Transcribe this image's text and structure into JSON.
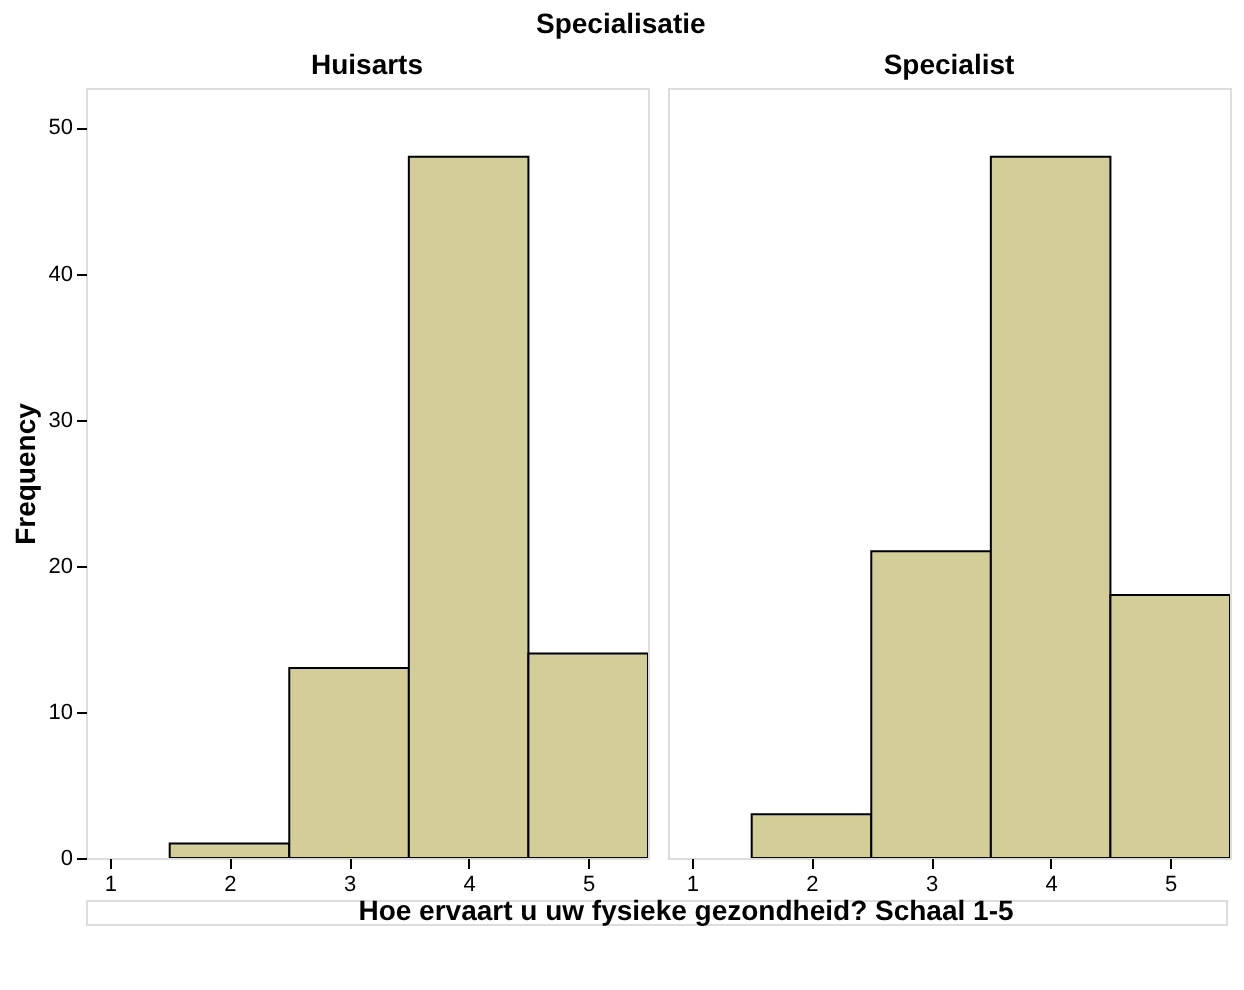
{
  "chart_data": [
    {
      "type": "histogram",
      "title": "Huisarts",
      "annotations": [
        "Specialisatie"
      ],
      "xlabel": "Hoe ervaart u uw fysieke gezondheid? Schaal 1-5",
      "ylabel": "Frequency",
      "bins": [
        1.5,
        2.5,
        3.5,
        4.5,
        5.5
      ],
      "values": [
        1,
        13,
        48,
        14
      ],
      "color": "#d3ce97",
      "xlim": [
        0.8,
        5.5
      ],
      "xticks": [
        1,
        2,
        3,
        4,
        5
      ],
      "ylim": [
        0,
        52.7
      ],
      "yticks": [
        0,
        10,
        20,
        30,
        40,
        50
      ],
      "grid": false
    },
    {
      "type": "histogram",
      "title": "Specialist",
      "bins": [
        1.5,
        2.5,
        3.5,
        4.5,
        5.5
      ],
      "values": [
        3,
        21,
        48,
        18
      ],
      "color": "#d3ce97",
      "xlim": [
        0.8,
        5.5
      ],
      "xticks": [
        1,
        2,
        3,
        4,
        5
      ],
      "ylim": [
        0,
        52.7
      ],
      "yticks": [
        0,
        10,
        20,
        30,
        40,
        50
      ],
      "grid": false,
      "tick_labels": "x"
    }
  ]
}
